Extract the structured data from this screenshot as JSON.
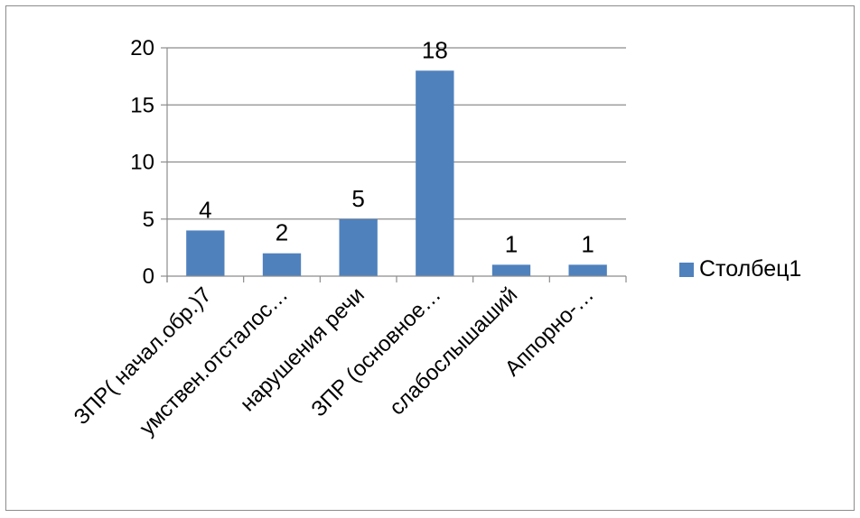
{
  "chart_data": {
    "type": "bar",
    "categories": [
      "ЗПР( начал.обр.)7",
      "умствен.отсталос…",
      "нарушения речи",
      "ЗПР (основное…",
      "слабослышаший",
      "Аппорно-…"
    ],
    "series": [
      {
        "name": "Столбец1",
        "values": [
          4,
          2,
          5,
          18,
          1,
          1
        ],
        "color": "#4f81bd"
      }
    ],
    "data_labels": [
      "4",
      "2",
      "5",
      "18",
      "1",
      "1"
    ],
    "yticks": [
      "0",
      "5",
      "10",
      "15",
      "20"
    ],
    "ylim": [
      0,
      20
    ],
    "grid": true,
    "legend_position": "right",
    "title": "",
    "xlabel": "",
    "ylabel": ""
  }
}
